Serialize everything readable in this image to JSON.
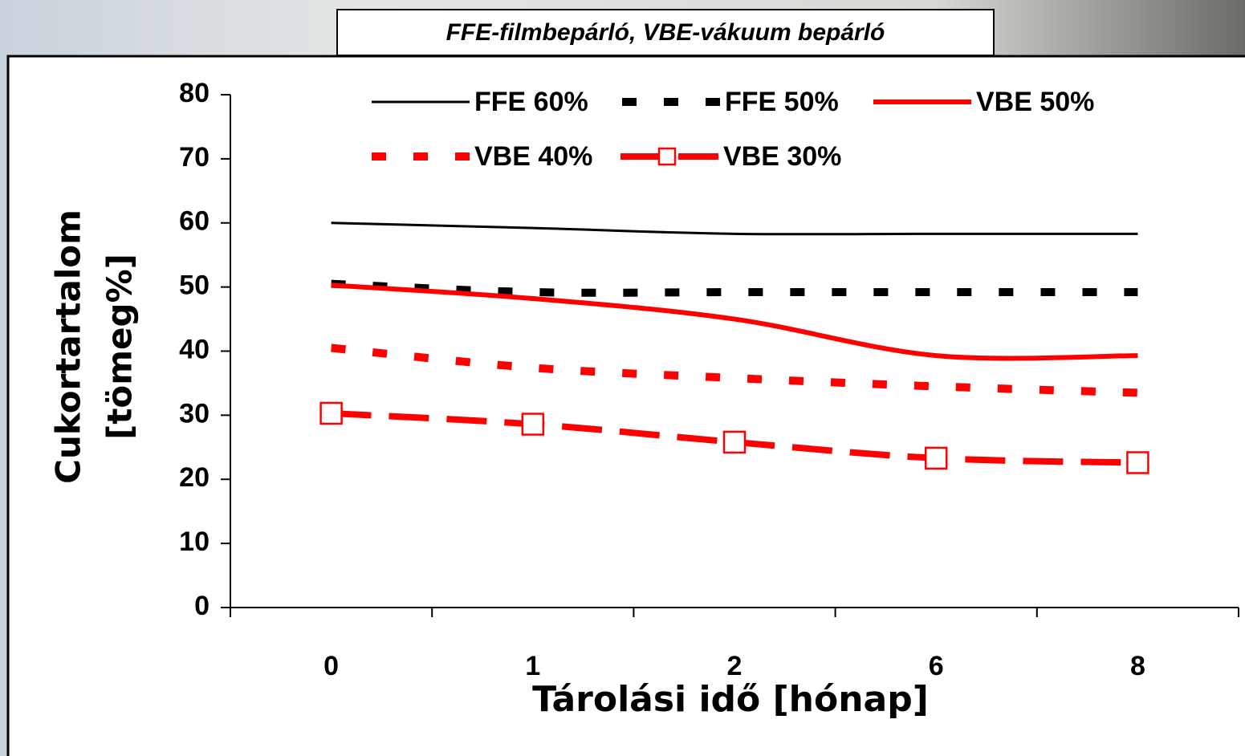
{
  "chart_data": {
    "type": "line",
    "title": "FFE-filmbepárló, VBE-vákuum bepárló",
    "ylabel": [
      "Cukortartalom",
      "[tömeg%]"
    ],
    "xlabel": "Tárolási idő [hónap]",
    "categories": [
      "0",
      "1",
      "2",
      "6",
      "8"
    ],
    "ylim": [
      0,
      80
    ],
    "yticks": [
      0,
      10,
      20,
      30,
      40,
      50,
      60,
      70,
      80
    ],
    "series": [
      {
        "name": "FFE 60%",
        "color": "#000000",
        "linestyle": "solid",
        "values": [
          60,
          59.2,
          58.3,
          58.3,
          58.3
        ]
      },
      {
        "name": "FFE 50%",
        "color": "#000000",
        "linestyle": "dotted",
        "values": [
          50.5,
          49.2,
          49.2,
          49.2,
          49.2
        ]
      },
      {
        "name": "VBE 50%",
        "color": "#ff0000",
        "linestyle": "solid-thick",
        "values": [
          50.3,
          48.2,
          45,
          39.3,
          39.3
        ]
      },
      {
        "name": "VBE 40%",
        "color": "#ff0000",
        "linestyle": "dotted",
        "values": [
          40.5,
          37.4,
          35.8,
          34.5,
          33.5
        ]
      },
      {
        "name": "VBE 30%",
        "color": "#ff0000",
        "linestyle": "dashed",
        "marker": "square",
        "values": [
          30.3,
          28.6,
          25.8,
          23.3,
          22.6
        ]
      }
    ]
  }
}
